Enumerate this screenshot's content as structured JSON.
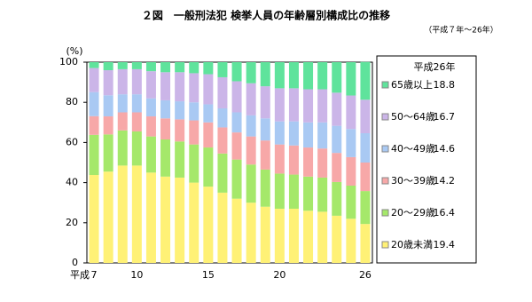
{
  "chart_data": {
    "type": "stacked_bar",
    "title": "２図　一般刑法犯 検挙人員の年齢層別構成比の推移",
    "subtitle": "（平成７年～26年）",
    "y_label": "(%)",
    "x_label": "平成",
    "legend_title": "平成26年",
    "categories": [
      "7",
      null,
      null,
      "10",
      null,
      null,
      null,
      null,
      "15",
      null,
      null,
      null,
      null,
      "20",
      null,
      null,
      null,
      null,
      null,
      "26"
    ],
    "series": [
      {
        "name": "20歳未満",
        "color": "#fff176",
        "values": [
          43.8,
          45.5,
          48.5,
          48.5,
          45,
          43,
          42.5,
          40,
          38,
          35,
          32,
          30,
          28,
          27,
          27,
          26,
          25.5,
          23.5,
          22,
          19.4
        ]
      },
      {
        "name": "20～29歳",
        "color": "#a5e86a",
        "values": [
          20,
          18.5,
          17.5,
          17,
          18,
          18.5,
          18,
          19,
          19.5,
          19.5,
          19.5,
          19,
          18.5,
          17.5,
          17,
          17,
          17,
          16.8,
          16.5,
          16.4
        ]
      },
      {
        "name": "30～39歳",
        "color": "#f7a8a8",
        "values": [
          9.3,
          9,
          9,
          9.5,
          10,
          10.5,
          11,
          12,
          12.5,
          13,
          13.5,
          14,
          14.5,
          14.5,
          14.5,
          14.5,
          14.5,
          14.5,
          14.2,
          14.2
        ]
      },
      {
        "name": "40～49歳",
        "color": "#a9c9f3",
        "values": [
          12,
          10.5,
          9,
          9,
          9,
          9,
          9,
          9,
          9,
          9.5,
          10,
          10.5,
          11,
          11.5,
          12,
          12.5,
          13,
          13.5,
          14,
          14.6
        ]
      },
      {
        "name": "50～64歳",
        "color": "#cbb5e8",
        "values": [
          12,
          12.5,
          12.5,
          12.5,
          13.5,
          14,
          14.5,
          14.5,
          15,
          15.5,
          15.5,
          16,
          16,
          16.5,
          16.5,
          16.5,
          16.5,
          16.5,
          16.7,
          16.7
        ]
      },
      {
        "name": "65歳以上",
        "color": "#5fe39c",
        "values": [
          2.9,
          4,
          3.5,
          3.5,
          4.5,
          5,
          5,
          5.5,
          6,
          7.5,
          9.5,
          10.5,
          12,
          13,
          13,
          13.5,
          13.5,
          15.2,
          16.6,
          18.8
        ]
      }
    ],
    "ylim": [
      0,
      100
    ],
    "yticks": [
      0,
      20,
      40,
      60,
      80,
      100
    ]
  }
}
